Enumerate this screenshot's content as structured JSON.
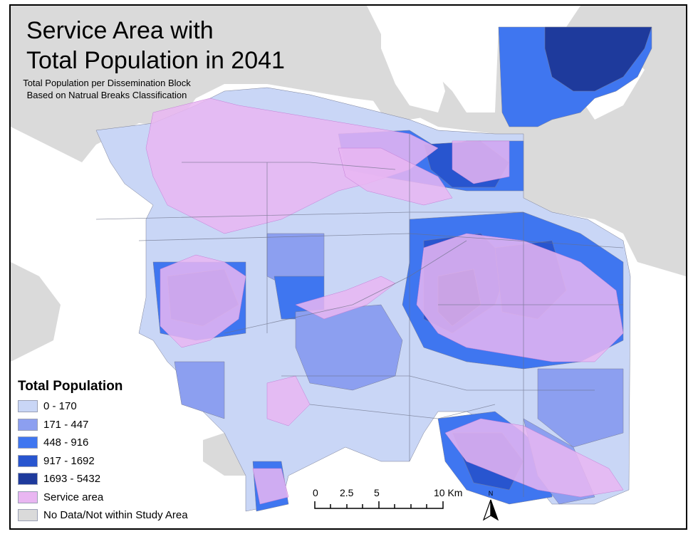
{
  "title_line1": "Service Area with",
  "title_line2": "Total Population in 2041",
  "subtitle": "Total Population per Dissemination Block Based on Natrual Breaks Classification",
  "legend": {
    "title": "Total Population",
    "items": [
      {
        "label": "0 - 170",
        "color": "#c9d6f6"
      },
      {
        "label": "171 - 447",
        "color": "#8c9ff0"
      },
      {
        "label": "448 - 916",
        "color": "#3f76f0"
      },
      {
        "label": "917 - 1692",
        "color": "#2855cf"
      },
      {
        "label": "1693 - 5432",
        "color": "#1e3a9c"
      },
      {
        "label": "Service area",
        "color": "#e9b6f2"
      },
      {
        "label": "No Data/Not within Study Area",
        "color": "#dadada"
      }
    ]
  },
  "scale_bar": {
    "ticks": [
      "0",
      "2.5",
      "5",
      "10 Km"
    ]
  },
  "north_arrow": "N"
}
